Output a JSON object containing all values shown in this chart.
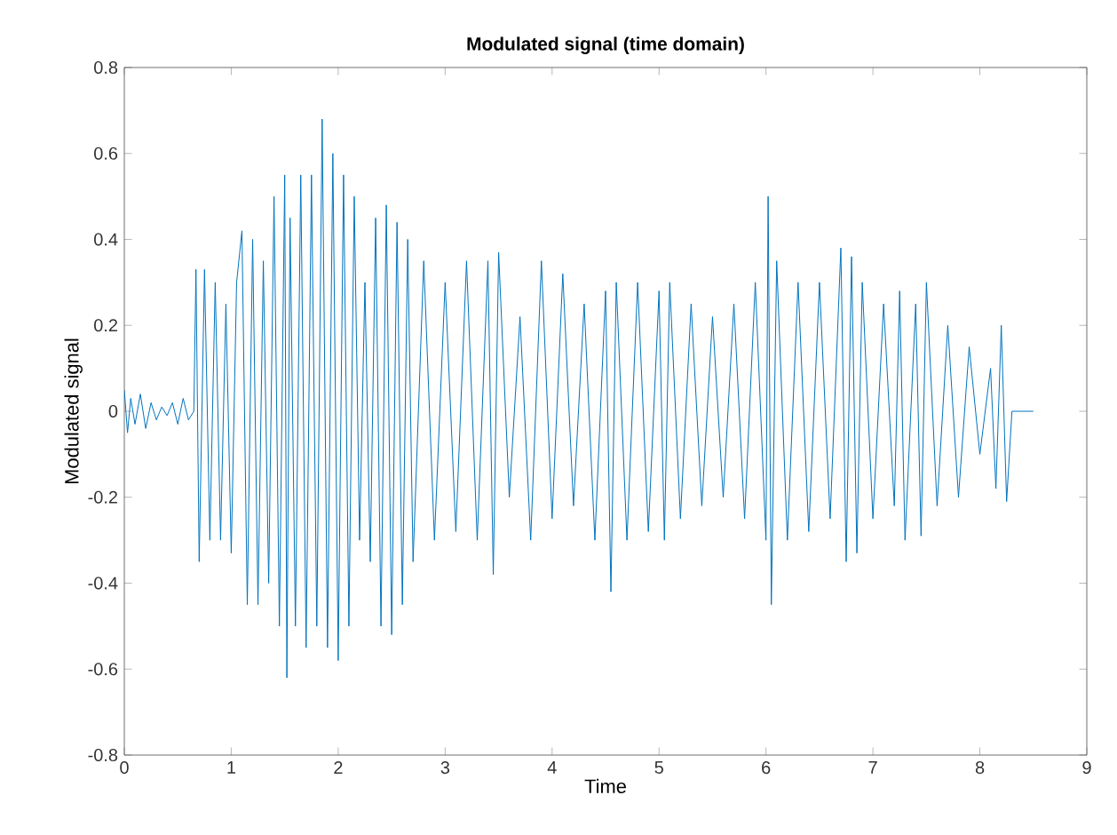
{
  "chart_data": {
    "type": "line",
    "title": "**Modulated signal (time domain)**",
    "xlabel": "Time",
    "ylabel": "Modulated signal",
    "xlim": [
      0,
      9
    ],
    "xticks": [
      0,
      1,
      2,
      3,
      4,
      5,
      6,
      7,
      8,
      9
    ],
    "ylim": [
      -0.8,
      0.8
    ],
    "yticks": [
      -0.8,
      -0.6,
      -0.4,
      -0.2,
      0,
      0.2,
      0.4,
      0.6,
      0.8
    ],
    "grid": false,
    "marker": "none",
    "line_style": "solid",
    "series": [
      {
        "color": "#0072bd",
        "x": [
          0,
          0.03,
          0.06,
          0.1,
          0.15,
          0.2,
          0.25,
          0.3,
          0.35,
          0.4,
          0.45,
          0.5,
          0.55,
          0.6,
          0.65,
          0.67,
          0.7,
          0.75,
          0.8,
          0.85,
          0.9,
          0.95,
          1.0,
          1.05,
          1.1,
          1.15,
          1.2,
          1.25,
          1.3,
          1.35,
          1.4,
          1.45,
          1.5,
          1.52,
          1.55,
          1.6,
          1.65,
          1.7,
          1.75,
          1.8,
          1.85,
          1.9,
          1.95,
          2.0,
          2.05,
          2.1,
          2.15,
          2.2,
          2.25,
          2.3,
          2.35,
          2.4,
          2.45,
          2.5,
          2.55,
          2.6,
          2.65,
          2.7,
          2.8,
          2.9,
          3.0,
          3.1,
          3.2,
          3.3,
          3.4,
          3.45,
          3.5,
          3.6,
          3.7,
          3.8,
          3.9,
          4.0,
          4.1,
          4.2,
          4.3,
          4.4,
          4.5,
          4.55,
          4.6,
          4.7,
          4.8,
          4.9,
          5.0,
          5.05,
          5.1,
          5.2,
          5.3,
          5.4,
          5.5,
          5.6,
          5.7,
          5.8,
          5.9,
          6.0,
          6.02,
          6.05,
          6.1,
          6.2,
          6.3,
          6.4,
          6.5,
          6.6,
          6.7,
          6.75,
          6.8,
          6.85,
          6.9,
          7.0,
          7.1,
          7.2,
          7.25,
          7.3,
          7.4,
          7.45,
          7.5,
          7.6,
          7.7,
          7.8,
          7.9,
          8.0,
          8.05,
          8.1,
          8.15,
          8.2,
          8.25,
          8.3,
          8.4,
          8.5
        ],
        "values": [
          0.05,
          -0.05,
          0.03,
          -0.03,
          0.04,
          -0.04,
          0.02,
          -0.02,
          0.01,
          -0.01,
          0.02,
          -0.03,
          0.03,
          -0.02,
          0,
          0.33,
          -0.35,
          0.33,
          -0.3,
          0.3,
          -0.3,
          0.25,
          -0.33,
          0.3,
          0.42,
          -0.45,
          0.4,
          -0.45,
          0.35,
          -0.4,
          0.5,
          -0.5,
          0.55,
          -0.62,
          0.45,
          -0.5,
          0.55,
          -0.55,
          0.55,
          -0.5,
          0.68,
          -0.55,
          0.6,
          -0.58,
          0.55,
          -0.5,
          0.5,
          -0.3,
          0.3,
          -0.35,
          0.45,
          -0.5,
          0.48,
          -0.52,
          0.44,
          -0.45,
          0.4,
          -0.35,
          0.35,
          -0.3,
          0.3,
          -0.28,
          0.35,
          -0.3,
          0.35,
          -0.38,
          0.37,
          -0.2,
          0.22,
          -0.3,
          0.35,
          -0.25,
          0.32,
          -0.22,
          0.25,
          -0.3,
          0.28,
          -0.42,
          0.3,
          -0.3,
          0.3,
          -0.28,
          0.28,
          -0.3,
          0.3,
          -0.25,
          0.25,
          -0.22,
          0.22,
          -0.2,
          0.25,
          -0.25,
          0.3,
          -0.3,
          0.5,
          -0.45,
          0.35,
          -0.3,
          0.3,
          -0.28,
          0.3,
          -0.25,
          0.38,
          -0.35,
          0.36,
          -0.33,
          0.3,
          -0.25,
          0.25,
          -0.22,
          0.28,
          -0.3,
          0.25,
          -0.29,
          0.3,
          -0.22,
          0.2,
          -0.2,
          0.15,
          -0.1,
          0,
          0.1,
          -0.18,
          0.2,
          -0.21,
          0,
          0,
          0
        ]
      }
    ]
  }
}
